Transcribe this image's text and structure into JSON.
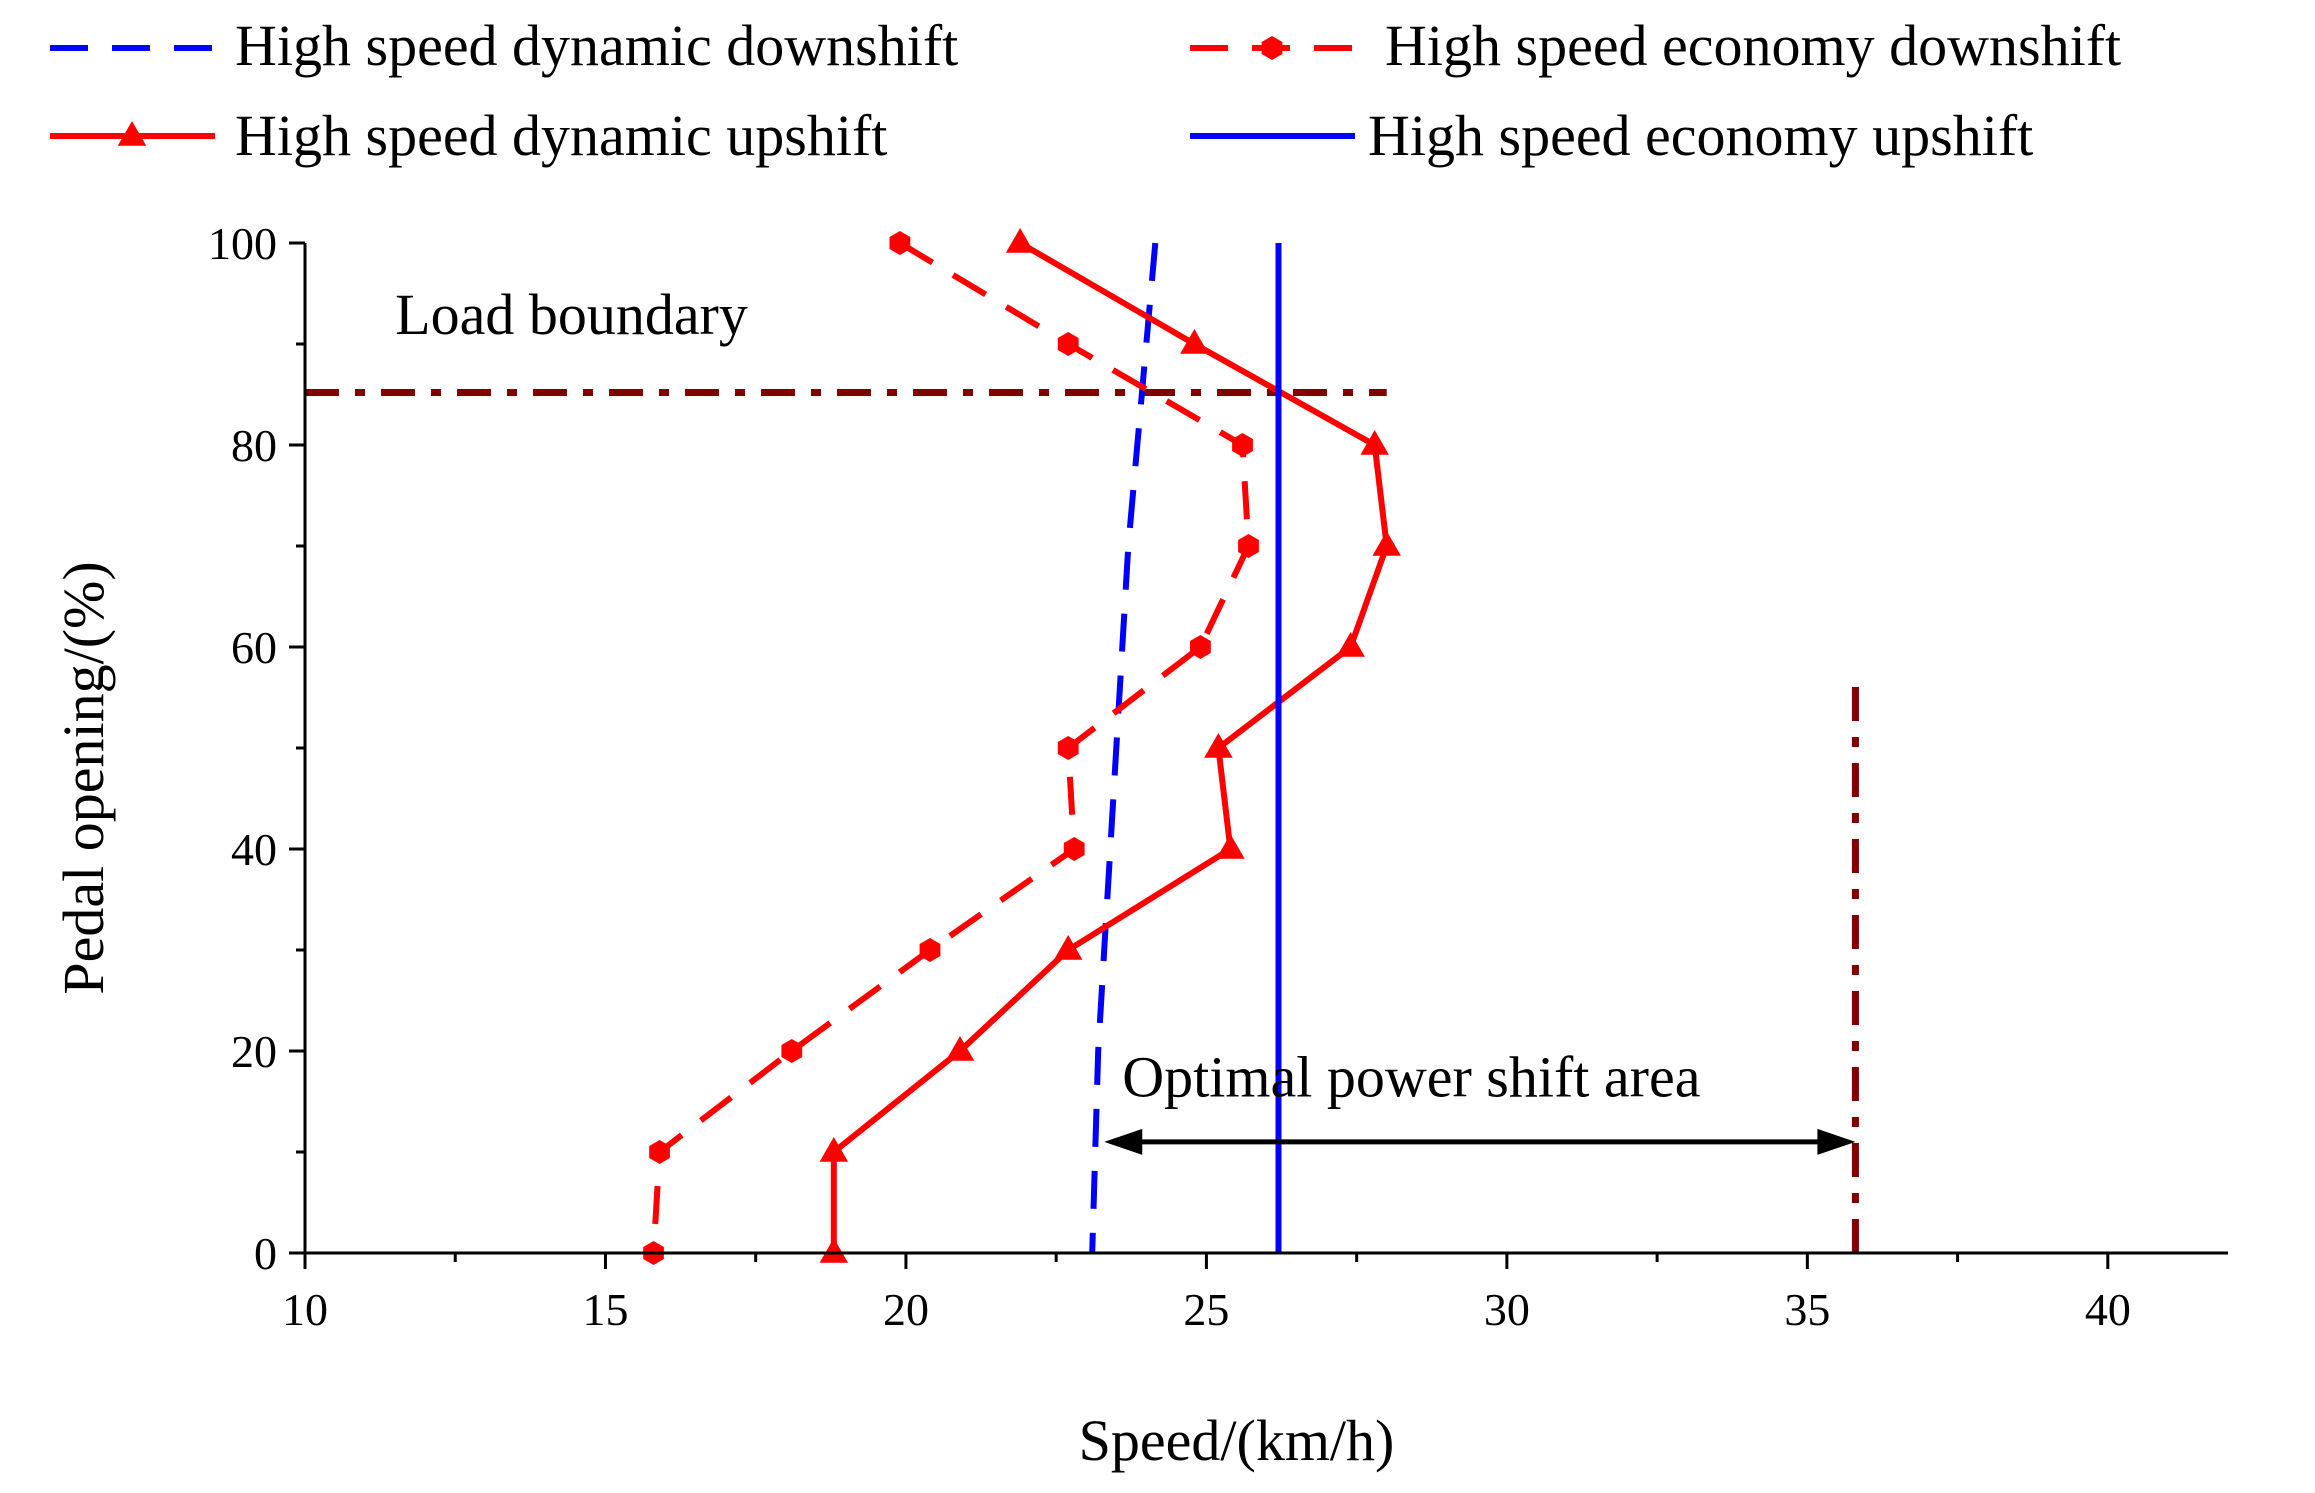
{
  "chart_data": {
    "type": "line",
    "title": "",
    "xlabel": "Speed/(km/h)",
    "ylabel": "Pedal opening/(%)",
    "xlim": [
      10,
      42
    ],
    "ylim": [
      0,
      100
    ],
    "xticks": [
      10,
      15,
      20,
      25,
      30,
      35,
      40
    ],
    "yticks": [
      0,
      20,
      40,
      60,
      80,
      100
    ],
    "grid": false,
    "legend_position": "top",
    "series": [
      {
        "name": "High speed dynamic downshift",
        "color": "#0000ff",
        "style": "dashed",
        "marker": "none",
        "x": [
          24.15,
          24.0,
          23.85,
          23.7,
          23.6,
          23.5,
          23.4,
          23.3,
          23.2,
          23.15,
          23.1
        ],
        "y": [
          100,
          90,
          80,
          70,
          60,
          50,
          40,
          30,
          20,
          10,
          0
        ]
      },
      {
        "name": "High speed economy downshift",
        "color": "#ff0000",
        "style": "dashed",
        "marker": "hexagon",
        "x": [
          19.9,
          22.7,
          25.6,
          25.7,
          24.9,
          22.7,
          22.8,
          20.4,
          18.1,
          15.9,
          15.8
        ],
        "y": [
          100,
          90,
          80,
          70,
          60,
          50,
          40,
          30,
          20,
          10,
          0
        ]
      },
      {
        "name": "High speed dynamic upshift",
        "color": "#ff0000",
        "style": "solid",
        "marker": "triangle",
        "x": [
          21.9,
          24.8,
          27.8,
          28.0,
          27.4,
          25.2,
          25.4,
          22.7,
          20.9,
          18.8,
          18.8
        ],
        "y": [
          100,
          90,
          80,
          70,
          60,
          50,
          40,
          30,
          20,
          10,
          0
        ]
      },
      {
        "name": "High speed economy upshift",
        "color": "#0000ff",
        "style": "solid",
        "marker": "none",
        "x": [
          26.2,
          26.2
        ],
        "y": [
          0,
          100
        ]
      }
    ],
    "reference_lines": [
      {
        "orientation": "horizontal",
        "y": 85.2,
        "x_from": 10,
        "x_to": 28.0,
        "color": "#800000",
        "style": "dash-dot"
      },
      {
        "orientation": "vertical",
        "x": 35.8,
        "y_from": 0,
        "y_to": 57,
        "color": "#800000",
        "style": "dash-dot"
      }
    ],
    "arrow": {
      "x_from": 23.3,
      "x_to": 35.8,
      "y": 11,
      "color": "#000000"
    },
    "annotations": [
      {
        "text": "Load boundary",
        "x": 11.5,
        "y": 91
      },
      {
        "text": "Optimal power shift area",
        "x": 23.6,
        "y": 15.5
      }
    ]
  }
}
